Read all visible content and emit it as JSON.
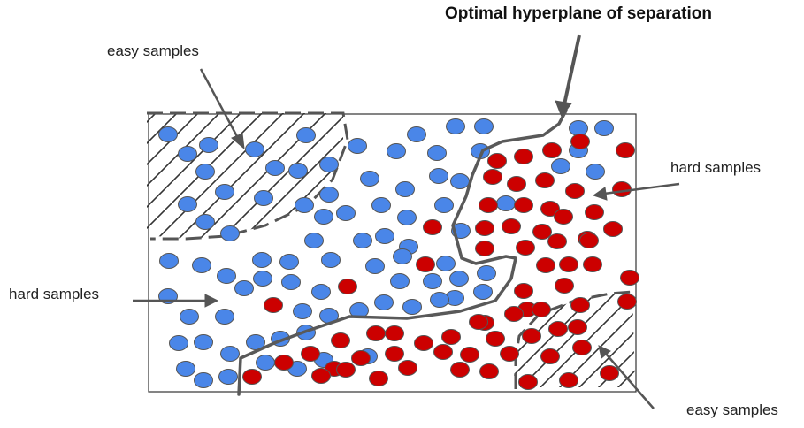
{
  "diagram": {
    "title": "Optimal hyperplane of separation",
    "labels": {
      "easy_top_left": "easy samples",
      "hard_left": "hard samples",
      "hard_right": "hard samples",
      "easy_bottom_right": "easy samples"
    },
    "colors": {
      "class_a_fill": "#4a86e8",
      "class_b_fill": "#cc0000",
      "outline": "#555555",
      "boundary": "#595959",
      "box": "#333333"
    }
  }
}
